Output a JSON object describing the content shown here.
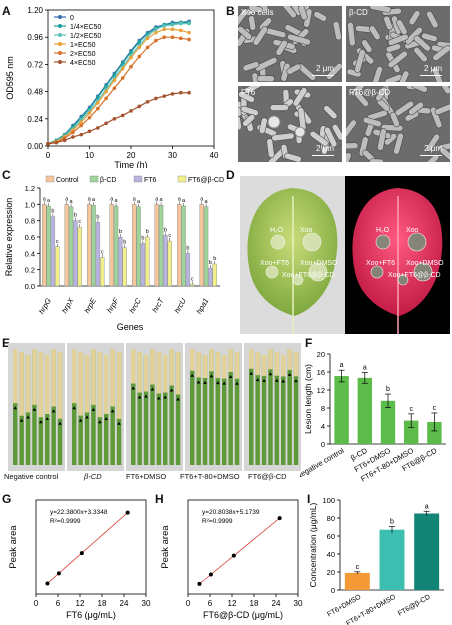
{
  "panels": {
    "A": "A",
    "B": "B",
    "C": "C",
    "D": "D",
    "E": "E",
    "F": "F",
    "G": "G",
    "H": "H",
    "I": "I"
  },
  "panel_b": {
    "labels": [
      "Xoo cells",
      "β-CD",
      "FT6",
      "FT6@β-CD"
    ],
    "scale": "2 μm"
  },
  "panel_d": {
    "labels": [
      "H₂O",
      "Xoo",
      "Xoo+FT6",
      "Xoo+DMSO",
      "Xoo+FT6@β-CD"
    ]
  },
  "panel_e": {
    "labels": [
      "Negative control",
      "β-CD",
      "FT6+DMSO",
      "FT6+T-80+DMSO",
      "FT6@β-CD"
    ]
  },
  "colors": {
    "A": [
      "#3a6fb3",
      "#1f9e9c",
      "#5cc0b6",
      "#e7a23a",
      "#d8702a",
      "#a5532f"
    ],
    "C": [
      "#f4c69c",
      "#9ed39a",
      "#b8b4e0",
      "#f2ee8c"
    ],
    "F": "#5cbb4a",
    "I": [
      "#f39a37",
      "#3cbfb0",
      "#138577"
    ],
    "G": "#d9413a"
  },
  "chart_data": [
    {
      "id": "A",
      "type": "line",
      "xlabel": "Time (h)",
      "ylabel": "OD595 nm",
      "xlim": [
        0,
        40
      ],
      "ylim": [
        0,
        1.2
      ],
      "xticks": [
        "0",
        "10",
        "20",
        "30",
        "40"
      ],
      "yticks": [
        "0.00",
        "0.24",
        "0.48",
        "0.72",
        "0.96",
        "1.20"
      ],
      "legend_position": "top-left",
      "series": [
        {
          "name": "0",
          "x": [
            0,
            2,
            4,
            6,
            8,
            10,
            12,
            14,
            16,
            18,
            20,
            22,
            24,
            26,
            28,
            30,
            32,
            34
          ],
          "y": [
            0.02,
            0.05,
            0.1,
            0.18,
            0.26,
            0.34,
            0.44,
            0.54,
            0.64,
            0.74,
            0.84,
            0.93,
            1.0,
            1.05,
            1.07,
            1.09,
            1.09,
            1.1
          ]
        },
        {
          "name": "1/4×EC50",
          "x": [
            0,
            2,
            4,
            6,
            8,
            10,
            12,
            14,
            16,
            18,
            20,
            22,
            24,
            26,
            28,
            30,
            32,
            34
          ],
          "y": [
            0.02,
            0.05,
            0.1,
            0.17,
            0.25,
            0.33,
            0.43,
            0.53,
            0.63,
            0.73,
            0.83,
            0.92,
            0.99,
            1.04,
            1.07,
            1.08,
            1.09,
            1.09
          ]
        },
        {
          "name": "1/2×EC50",
          "x": [
            0,
            2,
            4,
            6,
            8,
            10,
            12,
            14,
            16,
            18,
            20,
            22,
            24,
            26,
            28,
            30,
            32,
            34
          ],
          "y": [
            0.02,
            0.04,
            0.09,
            0.15,
            0.23,
            0.31,
            0.4,
            0.5,
            0.6,
            0.7,
            0.8,
            0.89,
            0.97,
            1.03,
            1.06,
            1.07,
            1.08,
            1.08
          ]
        },
        {
          "name": "1×EC50",
          "x": [
            0,
            2,
            4,
            6,
            8,
            10,
            12,
            14,
            16,
            18,
            20,
            22,
            24,
            26,
            28,
            30,
            32,
            34
          ],
          "y": [
            0.02,
            0.04,
            0.08,
            0.14,
            0.21,
            0.29,
            0.38,
            0.48,
            0.58,
            0.68,
            0.78,
            0.87,
            0.95,
            1.0,
            1.03,
            1.03,
            1.02,
            1.0
          ]
        },
        {
          "name": "2×EC50",
          "x": [
            0,
            2,
            4,
            6,
            8,
            10,
            12,
            14,
            16,
            18,
            20,
            22,
            24,
            26,
            28,
            30,
            32,
            34
          ],
          "y": [
            0.02,
            0.03,
            0.07,
            0.12,
            0.18,
            0.25,
            0.33,
            0.42,
            0.51,
            0.6,
            0.7,
            0.79,
            0.87,
            0.93,
            0.96,
            0.96,
            0.95,
            0.94
          ]
        },
        {
          "name": "4×EC50",
          "x": [
            0,
            2,
            4,
            6,
            8,
            10,
            12,
            14,
            16,
            18,
            20,
            22,
            24,
            26,
            28,
            30,
            32,
            34
          ],
          "y": [
            0.02,
            0.03,
            0.05,
            0.08,
            0.1,
            0.13,
            0.16,
            0.2,
            0.24,
            0.27,
            0.31,
            0.35,
            0.39,
            0.42,
            0.44,
            0.46,
            0.47,
            0.47
          ]
        }
      ]
    },
    {
      "id": "C",
      "type": "bar",
      "xlabel": "Genes",
      "ylabel": "Relative expression",
      "ylim": [
        0,
        1.2
      ],
      "yticks": [
        "0.0",
        "0.2",
        "0.4",
        "0.6",
        "0.8",
        "1.0",
        "1.2"
      ],
      "categories": [
        "hrpG",
        "hrpX",
        "hrpE",
        "hrpF",
        "hrcC",
        "hrcT",
        "hrcU",
        "hpa1"
      ],
      "legend_position": "top",
      "series": [
        {
          "name": "Control",
          "values": [
            1.0,
            1.0,
            1.0,
            1.0,
            1.0,
            1.0,
            1.0,
            1.0
          ],
          "letters": [
            "a",
            "a",
            "a",
            "a",
            "a",
            "a",
            "a",
            "a"
          ]
        },
        {
          "name": "β-CD",
          "values": [
            0.98,
            0.97,
            0.99,
            0.98,
            0.97,
            0.99,
            0.98,
            0.97
          ],
          "letters": [
            "a",
            "a",
            "a",
            "a",
            "a",
            "a",
            "a",
            "a"
          ]
        },
        {
          "name": "FT6",
          "values": [
            0.85,
            0.8,
            0.78,
            0.6,
            0.52,
            0.62,
            0.4,
            0.22
          ],
          "letters": [
            "b",
            "b",
            "b",
            "b",
            "b",
            "b",
            "b",
            "b"
          ]
        },
        {
          "name": "FT6@β-CD",
          "values": [
            0.48,
            0.72,
            0.35,
            0.47,
            0.6,
            0.55,
            0.02,
            0.27
          ],
          "letters": [
            "c",
            "c",
            "c",
            "b",
            "b",
            "c",
            "c",
            "b"
          ]
        }
      ]
    },
    {
      "id": "F",
      "type": "bar",
      "ylabel": "Lesion length (cm)",
      "ylim": [
        0,
        20
      ],
      "yticks": [
        "0",
        "4",
        "8",
        "12",
        "16",
        "20"
      ],
      "categories": [
        "Negative control",
        "β-CD",
        "FT6+DMSO",
        "FT6+T-80+DMSO",
        "FT6@β-CD"
      ],
      "values": [
        15.1,
        14.7,
        9.6,
        5.2,
        4.9
      ],
      "errors": [
        1.3,
        1.2,
        1.5,
        1.5,
        2.0
      ],
      "letters": [
        "a",
        "a",
        "b",
        "c",
        "c"
      ]
    },
    {
      "id": "G",
      "type": "scatter",
      "xlabel": "FT6 (μg/mL)",
      "ylabel": "Peak area",
      "xlim": [
        0,
        30
      ],
      "xticks": [
        "0",
        "6",
        "12",
        "18",
        "24",
        "30"
      ],
      "x": [
        3.125,
        6.25,
        12.5,
        25
      ],
      "y": [
        73,
        143,
        283,
        563
      ],
      "equation": "y=22.3800x+3.3348",
      "r2": "R²=0.9999"
    },
    {
      "id": "H",
      "type": "scatter",
      "xlabel": "FT6@β-CD (μg/mL)",
      "ylabel": "Peak area",
      "xlim": [
        0,
        30
      ],
      "xticks": [
        "0",
        "6",
        "12",
        "18",
        "24",
        "30"
      ],
      "x": [
        3.125,
        6.25,
        12.5,
        25
      ],
      "y": [
        70,
        135,
        265,
        525
      ],
      "equation": "y=20.8038x+5.1739",
      "r2": "R²=0.9999"
    },
    {
      "id": "I",
      "type": "bar",
      "ylabel": "Concentration (μg/mL)",
      "ylim": [
        0,
        100
      ],
      "yticks": [
        "0",
        "20",
        "40",
        "60",
        "80",
        "100"
      ],
      "categories": [
        "FT6+DMSO",
        "FT6+T-80+DMSO",
        "FT6@β-CD"
      ],
      "values": [
        19,
        67,
        85
      ],
      "errors": [
        1.2,
        3.5,
        2.5
      ],
      "letters": [
        "c",
        "b",
        "a"
      ]
    }
  ]
}
